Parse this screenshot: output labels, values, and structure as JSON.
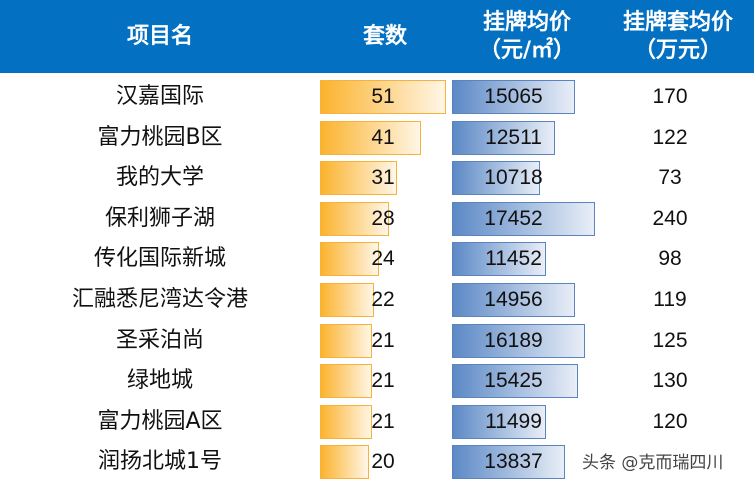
{
  "header": {
    "col_name": "项目名",
    "col_sets": "套数",
    "col_price_line1": "挂牌均价",
    "col_price_line2": "（元/㎡）",
    "col_total_line1": "挂牌套均价",
    "col_total_line2": "（万元）"
  },
  "colors": {
    "header_bg": "#0470c1",
    "sets_bar": "#fbb32e",
    "price_bar": "#5c89c6"
  },
  "rows": [
    {
      "name": "汉嘉国际",
      "sets": "51",
      "price": "15065",
      "total": "170"
    },
    {
      "name": "富力桃园B区",
      "sets": "41",
      "price": "12511",
      "total": "122"
    },
    {
      "name": "我的大学",
      "sets": "31",
      "price": "10718",
      "total": "73"
    },
    {
      "name": "保利狮子湖",
      "sets": "28",
      "price": "17452",
      "total": "240"
    },
    {
      "name": "传化国际新城",
      "sets": "24",
      "price": "11452",
      "total": "98"
    },
    {
      "name": "汇融悉尼湾达令港",
      "sets": "22",
      "price": "14956",
      "total": "119"
    },
    {
      "name": "圣采泊尚",
      "sets": "21",
      "price": "16189",
      "total": "125"
    },
    {
      "name": "绿地城",
      "sets": "21",
      "price": "15425",
      "total": "130"
    },
    {
      "name": "富力桃园A区",
      "sets": "21",
      "price": "11499",
      "total": "120"
    },
    {
      "name": "润扬北城1号",
      "sets": "20",
      "price": "13837",
      "total": ""
    }
  ],
  "watermark": "头条 @克而瑞四川",
  "chart_data": {
    "type": "table",
    "title": "",
    "columns": [
      "项目名",
      "套数",
      "挂牌均价（元/㎡）",
      "挂牌套均价（万元）"
    ],
    "categories": [
      "汉嘉国际",
      "富力桃园B区",
      "我的大学",
      "保利狮子湖",
      "传化国际新城",
      "汇融悉尼湾达令港",
      "圣采泊尚",
      "绿地城",
      "富力桃园A区",
      "润扬北城1号"
    ],
    "series": [
      {
        "name": "套数",
        "values": [
          51,
          41,
          31,
          28,
          24,
          22,
          21,
          21,
          21,
          20
        ]
      },
      {
        "name": "挂牌均价（元/㎡）",
        "values": [
          15065,
          12511,
          10718,
          17452,
          11452,
          14956,
          16189,
          15425,
          11499,
          13837
        ]
      },
      {
        "name": "挂牌套均价（万元）",
        "values": [
          170,
          122,
          73,
          240,
          98,
          119,
          125,
          130,
          120,
          null
        ]
      }
    ]
  }
}
